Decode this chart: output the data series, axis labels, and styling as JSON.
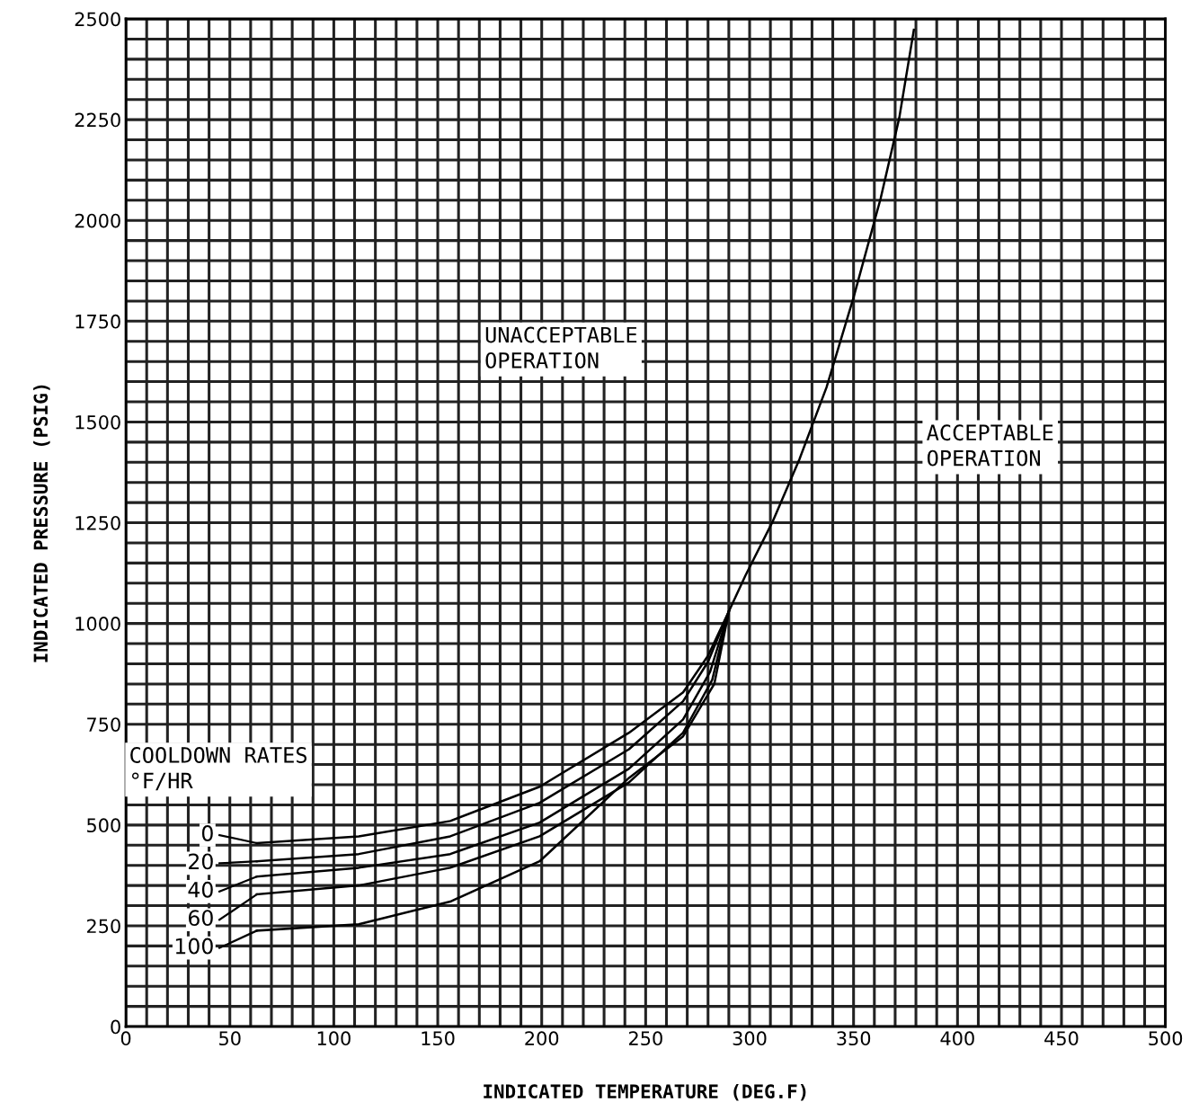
{
  "chart_data": {
    "type": "line",
    "xlabel": "INDICATED TEMPERATURE (DEG.F)",
    "ylabel": "INDICATED PRESSURE (PSIG)",
    "xlim": [
      0,
      500
    ],
    "ylim": [
      0,
      2500
    ],
    "xticks": [
      0,
      50,
      100,
      150,
      200,
      250,
      300,
      350,
      400,
      450,
      500
    ],
    "yticks": [
      0,
      250,
      500,
      750,
      1000,
      1250,
      1500,
      1750,
      2000,
      2250,
      2500
    ],
    "grid": true,
    "legend": "bottom left",
    "marker": "none",
    "line_style": "solid",
    "series": [
      {
        "name": "0",
        "color": "#000000",
        "x": [
          63,
          112,
          156,
          199,
          242,
          268,
          280,
          290,
          298,
          311,
          324,
          337,
          350,
          363,
          372,
          379
        ],
        "values": [
          455,
          472,
          510,
          595,
          729,
          829,
          920,
          1030,
          1119,
          1252,
          1408,
          1586,
          1809,
          2054,
          2255,
          2473
        ]
      },
      {
        "name": "20",
        "color": "#000000",
        "x": [
          63,
          112,
          156,
          199,
          242,
          268,
          280,
          290
        ],
        "values": [
          410,
          428,
          472,
          555,
          688,
          807,
          905,
          1030
        ]
      },
      {
        "name": "40",
        "color": "#000000",
        "x": [
          63,
          112,
          156,
          199,
          242,
          268,
          281,
          290
        ],
        "values": [
          372,
          394,
          428,
          506,
          640,
          762,
          880,
          1030
        ]
      },
      {
        "name": "60",
        "color": "#000000",
        "x": [
          63,
          112,
          156,
          199,
          242,
          268,
          282,
          290
        ],
        "values": [
          328,
          350,
          394,
          472,
          606,
          729,
          860,
          1030
        ]
      },
      {
        "name": "100",
        "color": "#000000",
        "x": [
          63,
          112,
          156,
          199,
          242,
          268,
          283,
          290
        ],
        "values": [
          238,
          254,
          310,
          410,
          617,
          720,
          850,
          1030
        ]
      }
    ],
    "annotations": [
      "COOLDOWN RATES\n°F/HR",
      "UNACCEPTABLE\nOPERATION",
      "ACCEPTABLE\nOPERATION"
    ]
  }
}
